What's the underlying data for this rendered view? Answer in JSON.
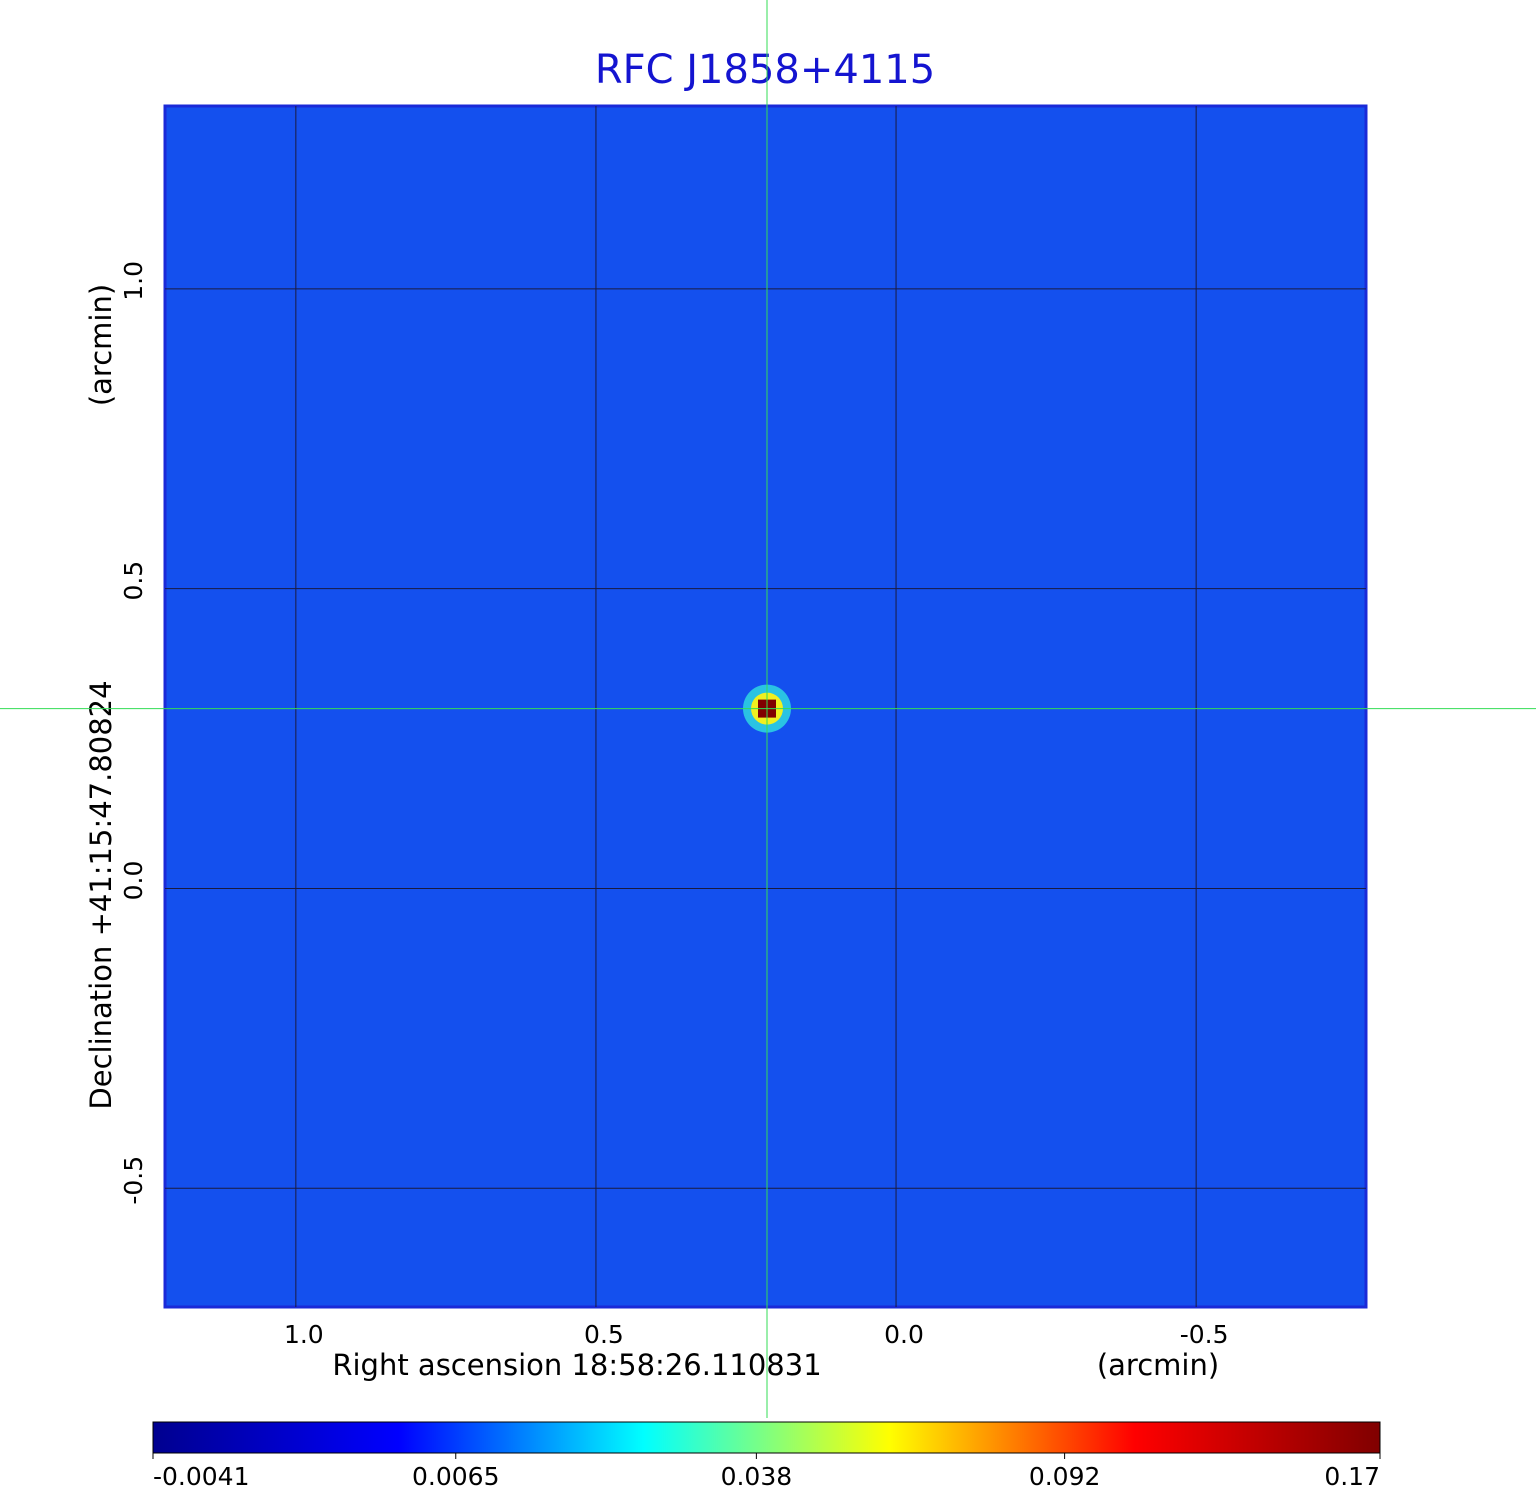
{
  "chart_data": {
    "type": "image",
    "title": "RFC J1858+4115",
    "x_label": "Right ascension  18:58:26.110831",
    "x_unit": "(arcmin)",
    "y_label": "Declination  +41:15:47.80824",
    "y_unit": "(arcmin)",
    "xlim": [
      1.218,
      -0.783
    ],
    "ylim": [
      -0.698,
      1.305
    ],
    "xticks": [
      {
        "value": 1,
        "label": "1.0"
      },
      0.5,
      {
        "value": 0,
        "label": "0.0"
      },
      -0.5
    ],
    "yticks": [
      -0.5,
      {
        "value": 0,
        "label": "0.0"
      },
      0.5,
      {
        "value": 1,
        "label": "1.0"
      }
    ],
    "grid": true,
    "peak": {
      "x": 0.215,
      "y": 0.3,
      "value": 0.17
    },
    "colorbar": {
      "scale": "sqrt",
      "ticks": [
        -0.0041,
        0.0065,
        0.038,
        0.092,
        0.17
      ],
      "colormap": [
        "#00008f",
        "#0000ff",
        "#00ffff",
        "#ffff00",
        "#ff0000",
        "#800000"
      ]
    }
  }
}
